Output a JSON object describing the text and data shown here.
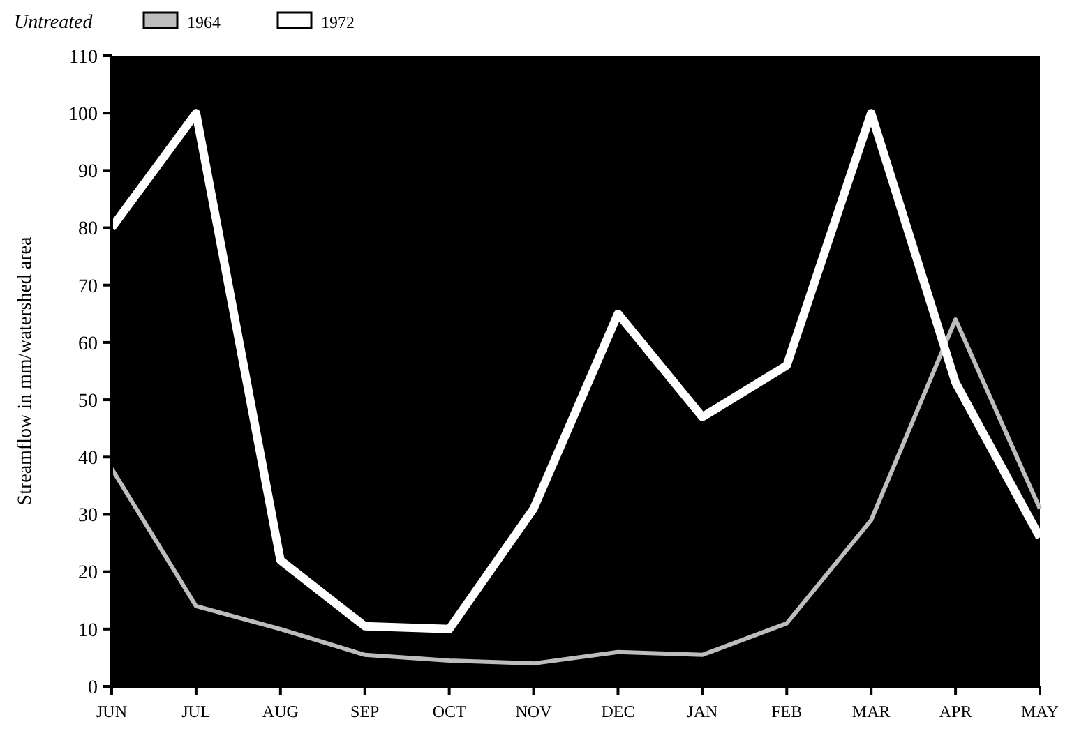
{
  "chart_data": {
    "type": "line",
    "ylabel": "Streamflow in mm/watershed area",
    "legend_title": "Untreated",
    "legend": "top left",
    "categories": [
      "JUN",
      "JUL",
      "AUG",
      "SEP",
      "OCT",
      "NOV",
      "DEC",
      "JAN",
      "FEB",
      "MAR",
      "APR",
      "MAY"
    ],
    "series": [
      {
        "name": "1964",
        "color": "#bdbdbd",
        "values": [
          38,
          14,
          10,
          5.5,
          4.5,
          4,
          6,
          5.5,
          11,
          29,
          64,
          31
        ]
      },
      {
        "name": "1972",
        "color": "#ffffff",
        "values": [
          80,
          100,
          22,
          10.5,
          10,
          31,
          65,
          47,
          56,
          100,
          53,
          26
        ]
      }
    ],
    "ylim": [
      0,
      110
    ],
    "yticks": [
      0,
      10,
      20,
      30,
      40,
      50,
      60,
      70,
      80,
      90,
      100,
      110
    ],
    "grid": false
  }
}
